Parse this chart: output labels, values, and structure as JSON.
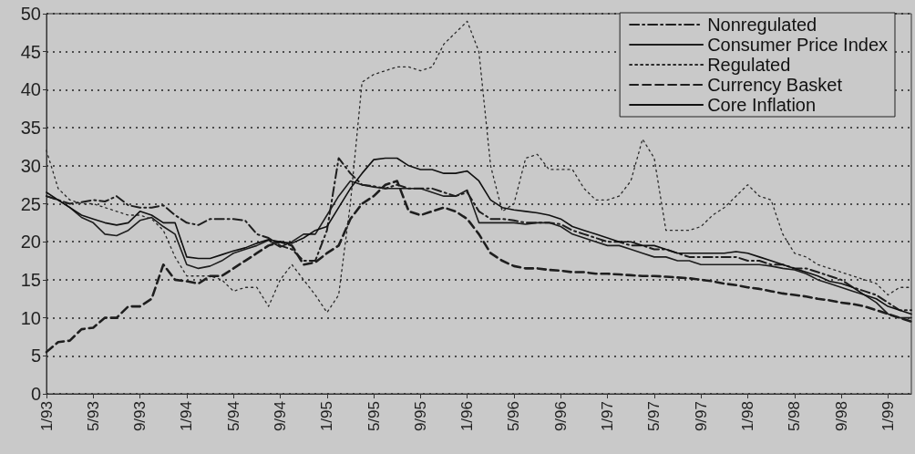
{
  "chart_data": {
    "type": "line",
    "categories": [
      "1/93",
      null,
      null,
      null,
      "5/93",
      null,
      null,
      null,
      "9/93",
      null,
      null,
      null,
      "1/94",
      null,
      null,
      null,
      "5/94",
      null,
      null,
      null,
      "9/94",
      null,
      null,
      null,
      "1/95",
      null,
      null,
      null,
      "5/95",
      null,
      null,
      null,
      "9/95",
      null,
      null,
      null,
      "1/96",
      null,
      null,
      null,
      "5/96",
      null,
      null,
      null,
      "9/96",
      null,
      null,
      null,
      "1/97",
      null,
      null,
      null,
      "5/97",
      null,
      null,
      null,
      "9/97",
      null,
      null,
      null,
      "1/98",
      null,
      null,
      null,
      "5/98",
      null,
      null,
      null,
      "9/98",
      null,
      null,
      null,
      "1/99",
      null,
      null
    ],
    "series": [
      {
        "name": "Nonregulated",
        "color": "#1e1e1e",
        "line_style": "dashdot",
        "values": [
          26,
          25.5,
          25,
          25.2,
          25.5,
          25.3,
          26,
          24.8,
          24.5,
          24.5,
          24.8,
          23.5,
          22.5,
          22.2,
          23,
          23,
          23,
          22.8,
          21,
          20.5,
          19.5,
          19,
          17.5,
          17.5,
          21.5,
          31,
          29,
          27.5,
          27.3,
          27,
          27.5,
          27,
          27,
          27,
          26.5,
          26,
          26.5,
          24,
          23,
          23,
          22.8,
          22.5,
          22.5,
          22.5,
          22.3,
          21.5,
          21,
          20.5,
          20,
          20,
          19.5,
          19.5,
          19,
          19,
          18.5,
          18,
          18,
          18,
          18,
          18,
          17.5,
          17.5,
          17,
          17,
          16.5,
          16.5,
          16,
          15.5,
          15,
          14,
          13.5,
          13,
          12,
          11,
          11
        ]
      },
      {
        "name": "Consumer Price Index",
        "color": "#1e1e1e",
        "line_style": "solid",
        "values": [
          26,
          25.5,
          24.5,
          23.2,
          22.5,
          21,
          20.8,
          21.5,
          22.8,
          23.2,
          22,
          21,
          17,
          16.5,
          16.8,
          17.5,
          18.5,
          19,
          19.5,
          20.2,
          19.3,
          20,
          21,
          21,
          23.5,
          26,
          28,
          27.5,
          27.2,
          27,
          27,
          27,
          27,
          26.5,
          26,
          26,
          26.8,
          22.5,
          22.5,
          22.5,
          22.5,
          22.3,
          22.5,
          22.5,
          22,
          21,
          20.5,
          20,
          19.5,
          19.5,
          19,
          18.5,
          18,
          18,
          17.5,
          17.5,
          17,
          17,
          17,
          17,
          17,
          17,
          16.8,
          16.5,
          16.3,
          15.8,
          15,
          14.5,
          14,
          13.5,
          13,
          12,
          10.5,
          10,
          10
        ]
      },
      {
        "name": "Regulated",
        "color": "#2a2a2a",
        "line_style": "dotted",
        "values": [
          32,
          27,
          25.5,
          25,
          25,
          24.5,
          24,
          23.5,
          23.5,
          23,
          21.5,
          18,
          15.5,
          15.5,
          15.5,
          15,
          13.5,
          14,
          14,
          11.5,
          15,
          17,
          15,
          13,
          10.7,
          13,
          25,
          41,
          42,
          42.5,
          43,
          43,
          42.5,
          43,
          46,
          47.5,
          49,
          45,
          30,
          24,
          25,
          31,
          31.5,
          29.5,
          29.5,
          29.5,
          27,
          25.5,
          25.5,
          26,
          28,
          33.5,
          31,
          21.5,
          21.5,
          21.5,
          22,
          23.5,
          24.5,
          26,
          27.5,
          26,
          25.5,
          21,
          18.5,
          18,
          17,
          16.5,
          16,
          15.5,
          15,
          14.5,
          13,
          14,
          14
        ]
      },
      {
        "name": "Currency Basket",
        "color": "#1e1e1e",
        "line_style": "dashed",
        "values": [
          5.5,
          6.8,
          7,
          8.5,
          8.7,
          10,
          10,
          11.5,
          11.5,
          12.5,
          17,
          15,
          14.8,
          14.5,
          15.5,
          15.5,
          16.5,
          17.5,
          18.5,
          19.5,
          20,
          19.5,
          17,
          17.3,
          18.5,
          19.5,
          23,
          25,
          26,
          27.5,
          28,
          24,
          23.5,
          24,
          24.5,
          24,
          23,
          21,
          18.5,
          17.5,
          16.8,
          16.5,
          16.5,
          16.3,
          16.2,
          16,
          16,
          15.8,
          15.8,
          15.7,
          15.6,
          15.5,
          15.5,
          15.4,
          15.3,
          15.2,
          15,
          14.8,
          14.5,
          14.3,
          14,
          13.8,
          13.5,
          13.2,
          13,
          12.8,
          12.5,
          12.3,
          12,
          11.8,
          11.5,
          11,
          10.5,
          10,
          9.5
        ]
      },
      {
        "name": "Core Inflation",
        "color": "#111111",
        "line_style": "solid",
        "values": [
          26.5,
          25.5,
          24.5,
          23.5,
          23,
          22.5,
          22.2,
          22.5,
          24,
          23.5,
          22.5,
          22.5,
          18,
          17.8,
          17.8,
          18.3,
          18.8,
          19.2,
          19.8,
          20.3,
          20,
          19.8,
          20.5,
          21.5,
          22,
          24.5,
          27,
          29,
          30.8,
          31,
          31,
          30,
          29.5,
          29.5,
          29,
          29,
          29.3,
          28,
          25.5,
          24.5,
          24.2,
          24,
          23.8,
          23.5,
          23,
          22,
          21.5,
          21,
          20.5,
          20,
          20,
          19.5,
          19.5,
          19,
          18.5,
          18.5,
          18.5,
          18.5,
          18.5,
          18.7,
          18.5,
          18,
          17.5,
          17,
          16.5,
          16,
          15.5,
          14.8,
          14.5,
          14,
          13,
          12.5,
          11.5,
          11,
          10.5
        ]
      }
    ],
    "ylim": [
      0,
      50
    ],
    "yticks": [
      0,
      5,
      10,
      15,
      20,
      25,
      30,
      35,
      40,
      45,
      50
    ],
    "grid": "y",
    "legend": "top right",
    "marker": "none"
  }
}
